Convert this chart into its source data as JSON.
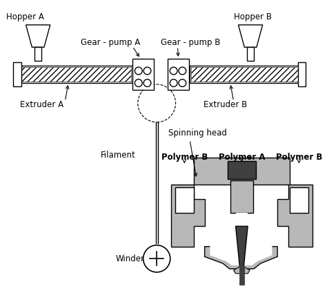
{
  "bg_color": "#ffffff",
  "line_color": "#000000",
  "light_gray": "#b8b8b8",
  "dark_gray": "#404040",
  "labels": {
    "hopper_a": "Hopper A",
    "hopper_b": "Hopper B",
    "gear_pump_a": "Gear - pump A",
    "gear_pump_b": "Gear - pump B",
    "extruder_a": "Extruder A",
    "extruder_b": "Extruder B",
    "spinning_head": "Spinning head",
    "filament": "Filament",
    "polymer_a": "Polymer A",
    "polymer_b_left": "Polymer B",
    "polymer_b_right": "Polymer B",
    "winder": "Winder"
  }
}
